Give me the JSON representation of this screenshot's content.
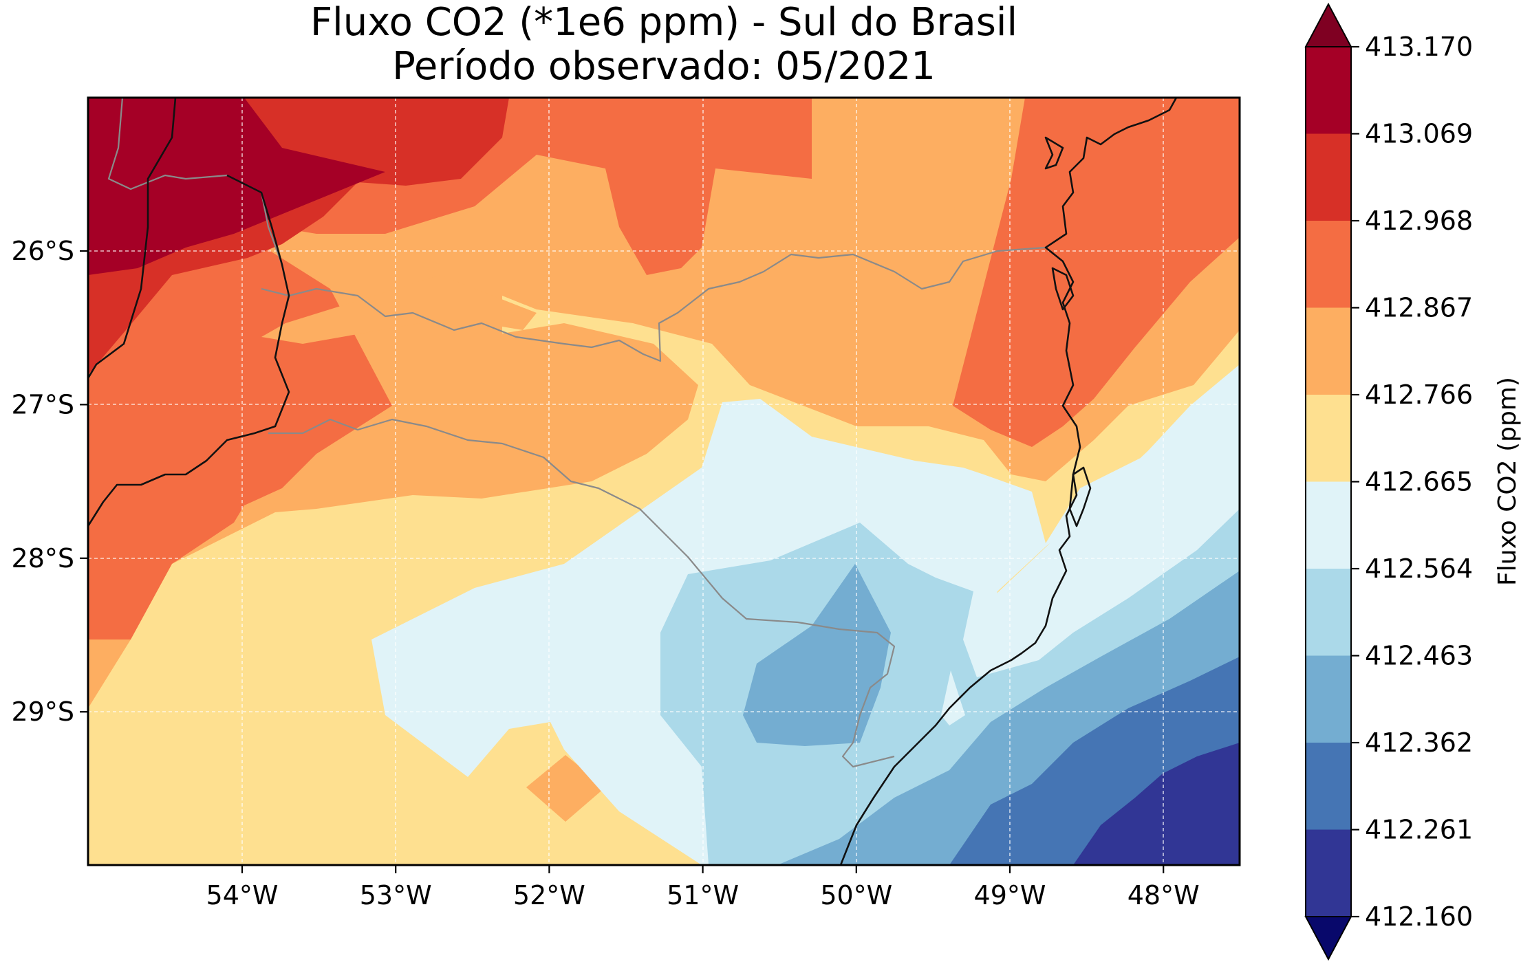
{
  "title": [
    "Fluxo CO2 (*1e6 ppm) - Sul do Brasil",
    "Período observado: 05/2021"
  ],
  "map": {
    "type": "filled-contour",
    "x_ticks": [
      "54°W",
      "53°W",
      "52°W",
      "51°W",
      "50°W",
      "49°W",
      "48°W"
    ],
    "y_ticks": [
      "26°S",
      "27°S",
      "28°S",
      "29°S"
    ],
    "lon_range": [
      -55.1,
      -47.5
    ],
    "lat_range": [
      -30.0,
      -25.0
    ],
    "gridlines": true,
    "features": [
      "coastline",
      "state-borders",
      "country-borders"
    ]
  },
  "colorbar": {
    "label": "Fluxo CO2 (ppm)",
    "levels": [
      "413.170",
      "413.069",
      "412.968",
      "412.867",
      "412.766",
      "412.665",
      "412.564",
      "412.463",
      "412.362",
      "412.261",
      "412.160"
    ],
    "colors_top_to_bottom": [
      "#a50026",
      "#d73027",
      "#f46d43",
      "#fdae61",
      "#fee090",
      "#e0f3f8",
      "#abd9e9",
      "#74add1",
      "#4575b4",
      "#313695"
    ],
    "extend_top_color": "#7f0022",
    "extend_bottom_color": "#08086b",
    "extend": "both"
  }
}
